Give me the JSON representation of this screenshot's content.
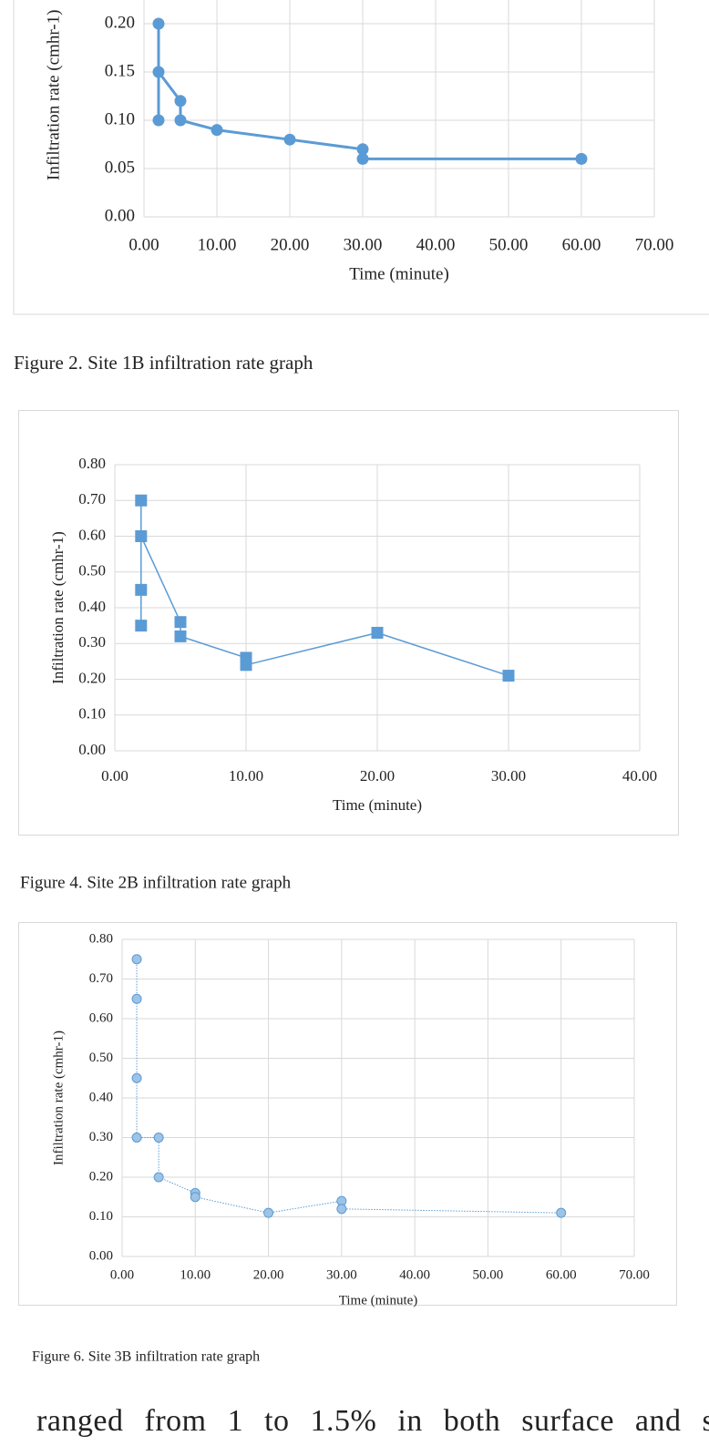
{
  "chart_data": [
    {
      "type": "scatter",
      "marker": "circle",
      "line_style": "solid",
      "color": "#5b9bd5",
      "y_label": "Infiltration rate (cmhr-1)",
      "x_label": "Time (minute)",
      "caption": "Figure 2. Site 1B infiltration rate graph",
      "x": [
        2,
        2,
        2,
        5,
        5,
        10,
        20,
        30,
        30,
        60
      ],
      "values": [
        0.2,
        0.1,
        0.15,
        0.12,
        0.1,
        0.09,
        0.08,
        0.07,
        0.06,
        0.06
      ],
      "xlim": [
        0,
        70
      ],
      "ylim": [
        0,
        0.25
      ],
      "grid": true,
      "xticks": [
        {
          "value": 0,
          "label": "0.00"
        },
        {
          "value": 10,
          "label": "10.00"
        },
        {
          "value": 20,
          "label": "20.00"
        },
        {
          "value": 30,
          "label": "30.00"
        },
        {
          "value": 40,
          "label": "40.00"
        },
        {
          "value": 50,
          "label": "50.00"
        },
        {
          "value": 60,
          "label": "60.00"
        },
        {
          "value": 70,
          "label": "70.00"
        }
      ],
      "yticks": [
        {
          "value": 0,
          "label": "0.00"
        },
        {
          "value": 0.05,
          "label": "0.05"
        },
        {
          "value": 0.1,
          "label": "0.10"
        },
        {
          "value": 0.15,
          "label": "0.15"
        },
        {
          "value": 0.2,
          "label": "0.20"
        }
      ]
    },
    {
      "type": "scatter",
      "marker": "square",
      "line_style": "solid",
      "color": "#5b9bd5",
      "y_label": "Infiltration rate (cmhr-1)",
      "x_label": "Time (minute)",
      "caption": "Figure 4. Site 2B infiltration rate graph",
      "x": [
        2,
        2,
        2,
        2,
        5,
        5,
        10,
        10,
        20,
        30
      ],
      "values": [
        0.7,
        0.45,
        0.35,
        0.6,
        0.36,
        0.32,
        0.26,
        0.24,
        0.33,
        0.21
      ],
      "xlim": [
        0,
        40
      ],
      "ylim": [
        0,
        0.8
      ],
      "grid": true,
      "xticks": [
        {
          "value": 0,
          "label": "0.00"
        },
        {
          "value": 10,
          "label": "10.00"
        },
        {
          "value": 20,
          "label": "20.00"
        },
        {
          "value": 30,
          "label": "30.00"
        },
        {
          "value": 40,
          "label": "40.00"
        }
      ],
      "yticks": [
        {
          "value": 0,
          "label": "0.00"
        },
        {
          "value": 0.1,
          "label": "0.10"
        },
        {
          "value": 0.2,
          "label": "0.20"
        },
        {
          "value": 0.3,
          "label": "0.30"
        },
        {
          "value": 0.4,
          "label": "0.40"
        },
        {
          "value": 0.5,
          "label": "0.50"
        },
        {
          "value": 0.6,
          "label": "0.60"
        },
        {
          "value": 0.7,
          "label": "0.70"
        },
        {
          "value": 0.8,
          "label": "0.80"
        }
      ]
    },
    {
      "type": "scatter",
      "marker": "circle",
      "line_style": "dotted",
      "color": "#5b9bd5",
      "marker_fill": "#9dc3e6",
      "y_label": "Infiltration rate (cmhr-1)",
      "x_label": "Time (minute)",
      "caption": "Figure 6. Site 3B infiltration rate graph",
      "x": [
        2,
        2,
        2,
        2,
        5,
        5,
        10,
        10,
        20,
        30,
        30,
        60
      ],
      "values": [
        0.75,
        0.65,
        0.45,
        0.3,
        0.3,
        0.2,
        0.16,
        0.15,
        0.11,
        0.14,
        0.12,
        0.11
      ],
      "xlim": [
        0,
        70
      ],
      "ylim": [
        0,
        0.8
      ],
      "grid": true,
      "xticks": [
        {
          "value": 0,
          "label": "0.00"
        },
        {
          "value": 10,
          "label": "10.00"
        },
        {
          "value": 20,
          "label": "20.00"
        },
        {
          "value": 30,
          "label": "30.00"
        },
        {
          "value": 40,
          "label": "40.00"
        },
        {
          "value": 50,
          "label": "50.00"
        },
        {
          "value": 60,
          "label": "60.00"
        },
        {
          "value": 70,
          "label": "70.00"
        }
      ],
      "yticks": [
        {
          "value": 0,
          "label": "0.00"
        },
        {
          "value": 0.1,
          "label": "0.10"
        },
        {
          "value": 0.2,
          "label": "0.20"
        },
        {
          "value": 0.3,
          "label": "0.30"
        },
        {
          "value": 0.4,
          "label": "0.40"
        },
        {
          "value": 0.5,
          "label": "0.50"
        },
        {
          "value": 0.6,
          "label": "0.60"
        },
        {
          "value": 0.7,
          "label": "0.70"
        },
        {
          "value": 0.8,
          "label": "0.80"
        }
      ]
    }
  ],
  "body_text": "ranged from 1 to 1.5% in both surface and s"
}
